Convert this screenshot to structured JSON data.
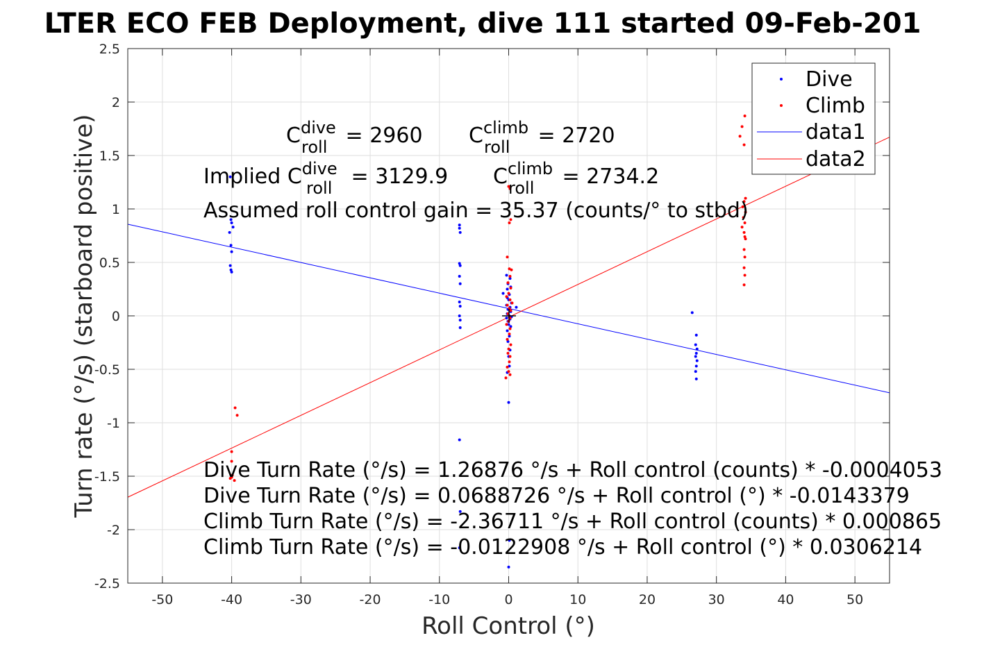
{
  "chart_data": {
    "type": "scatter",
    "title": "LTER ECO FEB Deployment, dive 111 started 09-Feb-201",
    "xlabel": "Roll Control (°)",
    "ylabel": "Turn rate (°/s) (starboard positive)",
    "xlim": [
      -55,
      55
    ],
    "ylim": [
      -2.5,
      2.5
    ],
    "xticks": [
      -50,
      -40,
      -30,
      -20,
      -10,
      0,
      10,
      20,
      30,
      40,
      50
    ],
    "yticks": [
      -2.5,
      -2,
      -1.5,
      -1,
      -0.5,
      0,
      0.5,
      1,
      1.5,
      2,
      2.5
    ],
    "grid": true,
    "legend_position": "top-right",
    "legend": [
      "Dive",
      "Climb",
      "data1",
      "data2"
    ],
    "colors": {
      "dive": "#0000ff",
      "climb": "#ff0000",
      "axis": "#262626",
      "grid": "#dedede"
    },
    "series": [
      {
        "name": "Dive",
        "kind": "points",
        "color": "#0000ff",
        "points": [
          [
            -40.2,
            1.3
          ],
          [
            -40.1,
            0.9
          ],
          [
            -40.0,
            0.87
          ],
          [
            -40.3,
            0.78
          ],
          [
            -39.8,
            0.83
          ],
          [
            -40.1,
            0.66
          ],
          [
            -40.0,
            0.6
          ],
          [
            -40.2,
            0.47
          ],
          [
            -40.1,
            0.43
          ],
          [
            -40.0,
            0.41
          ],
          [
            -7.1,
            0.85
          ],
          [
            -7.1,
            0.82
          ],
          [
            -7.0,
            0.78
          ],
          [
            -7.1,
            0.49
          ],
          [
            -7.0,
            0.47
          ],
          [
            -7.1,
            0.37
          ],
          [
            -7.0,
            0.3
          ],
          [
            -7.1,
            0.13
          ],
          [
            -7.0,
            0.09
          ],
          [
            -7.1,
            0.0
          ],
          [
            -7.0,
            -0.04
          ],
          [
            -7.0,
            -0.11
          ],
          [
            -7.1,
            -1.16
          ],
          [
            -7.0,
            -1.83
          ],
          [
            -7.1,
            -2.17
          ],
          [
            -0.3,
            0.38
          ],
          [
            0.2,
            0.35
          ],
          [
            -0.1,
            0.3
          ],
          [
            0.3,
            0.27
          ],
          [
            -0.2,
            0.25
          ],
          [
            -0.8,
            0.21
          ],
          [
            0.1,
            0.2
          ],
          [
            -0.2,
            0.17
          ],
          [
            0.0,
            0.15
          ],
          [
            0.4,
            0.12
          ],
          [
            -0.3,
            0.1
          ],
          [
            0.2,
            0.08
          ],
          [
            -0.1,
            0.06
          ],
          [
            1.1,
            0.08
          ],
          [
            0.3,
            0.04
          ],
          [
            -0.2,
            0.02
          ],
          [
            0.1,
            0.0
          ],
          [
            -0.3,
            -0.02
          ],
          [
            0.4,
            -0.01
          ],
          [
            0.2,
            -0.03
          ],
          [
            -0.1,
            -0.05
          ],
          [
            0.0,
            -0.08
          ],
          [
            0.3,
            -0.1
          ],
          [
            -0.2,
            -0.14
          ],
          [
            0.1,
            -0.19
          ],
          [
            -0.1,
            -0.24
          ],
          [
            0.2,
            -0.32
          ],
          [
            0.0,
            -0.38
          ],
          [
            0.1,
            -0.47
          ],
          [
            -0.2,
            -0.53
          ],
          [
            0.0,
            -0.81
          ],
          [
            0.1,
            -2.1
          ],
          [
            0.0,
            -2.35
          ],
          [
            26.5,
            0.03
          ],
          [
            27.1,
            -0.18
          ],
          [
            27.0,
            -0.27
          ],
          [
            27.2,
            -0.31
          ],
          [
            27.1,
            -0.35
          ],
          [
            27.0,
            -0.38
          ],
          [
            27.2,
            -0.42
          ],
          [
            27.1,
            -0.47
          ],
          [
            27.0,
            -0.52
          ],
          [
            27.1,
            -0.59
          ]
        ]
      },
      {
        "name": "Climb",
        "kind": "points",
        "color": "#ff0000",
        "points": [
          [
            -39.5,
            -0.86
          ],
          [
            -39.2,
            -0.93
          ],
          [
            -40.0,
            -1.27
          ],
          [
            -40.0,
            -1.36
          ],
          [
            -39.9,
            -1.49
          ],
          [
            -40.2,
            -1.52
          ],
          [
            -40.0,
            -1.51
          ],
          [
            -39.6,
            -1.54
          ],
          [
            0.2,
            1.19
          ],
          [
            0.0,
            1.21
          ],
          [
            0.3,
            0.9
          ],
          [
            0.1,
            0.87
          ],
          [
            -0.2,
            0.55
          ],
          [
            0.1,
            0.44
          ],
          [
            0.4,
            0.43
          ],
          [
            0.2,
            0.37
          ],
          [
            -0.1,
            0.31
          ],
          [
            0.3,
            0.26
          ],
          [
            0.0,
            0.21
          ],
          [
            -0.3,
            0.18
          ],
          [
            0.2,
            0.15
          ],
          [
            0.5,
            0.12
          ],
          [
            -0.2,
            0.1
          ],
          [
            0.1,
            0.07
          ],
          [
            0.3,
            0.05
          ],
          [
            -0.1,
            0.02
          ],
          [
            0.2,
            -0.02
          ],
          [
            0.0,
            -0.05
          ],
          [
            -0.3,
            -0.08
          ],
          [
            0.2,
            -0.12
          ],
          [
            0.1,
            -0.17
          ],
          [
            -0.2,
            -0.22
          ],
          [
            0.3,
            -0.27
          ],
          [
            0.0,
            -0.31
          ],
          [
            -0.1,
            -0.35
          ],
          [
            0.2,
            -0.38
          ],
          [
            0.1,
            -0.43
          ],
          [
            -0.2,
            -0.48
          ],
          [
            0.0,
            -0.52
          ],
          [
            0.2,
            -0.55
          ],
          [
            -0.4,
            -0.58
          ],
          [
            34.1,
            1.87
          ],
          [
            33.7,
            1.77
          ],
          [
            33.4,
            1.68
          ],
          [
            34.0,
            1.6
          ],
          [
            34.2,
            1.1
          ],
          [
            34.0,
            1.07
          ],
          [
            33.8,
            1.02
          ],
          [
            34.2,
            0.97
          ],
          [
            33.9,
            0.92
          ],
          [
            34.1,
            0.87
          ],
          [
            33.7,
            0.83
          ],
          [
            34.0,
            0.78
          ],
          [
            34.1,
            0.74
          ],
          [
            34.2,
            0.72
          ],
          [
            34.0,
            0.62
          ],
          [
            34.1,
            0.55
          ],
          [
            34.0,
            0.45
          ],
          [
            34.1,
            0.38
          ],
          [
            34.0,
            0.29
          ]
        ]
      },
      {
        "name": "data1",
        "kind": "line",
        "color": "#0000ff",
        "intercept": 0.0688726,
        "slope": -0.0143379
      },
      {
        "name": "data2",
        "kind": "line",
        "color": "#ff0000",
        "intercept": -0.0122908,
        "slope": 0.0306214
      }
    ],
    "annotations": {
      "c_dive_label": "C",
      "c_dive_sup": "dive",
      "c_dive_sub": "roll",
      "c_dive_value": " = 2960",
      "c_climb_label": "C",
      "c_climb_sup": "climb",
      "c_climb_sub": "roll",
      "c_climb_value": " = 2720",
      "implied_prefix": "Implied C",
      "implied_dive_sup": "dive",
      "implied_dive_sub": "roll",
      "implied_dive_value": " = 3129.9",
      "implied_climb_label": "C",
      "implied_climb_sup": "climb",
      "implied_climb_sub": "roll",
      "implied_climb_value": " = 2734.2",
      "gain": "Assumed roll control gain = 35.37 (counts/° to stbd)",
      "eq1": "Dive Turn Rate (°/s) = 1.26876 °/s + Roll control (counts) * -0.0004053",
      "eq2": "Dive Turn Rate (°/s) = 0.0688726 °/s + Roll control (°) * -0.0143379",
      "eq3": "Climb Turn Rate (°/s) = -2.36711 °/s + Roll control (counts) * 0.000865",
      "eq4": "Climb Turn Rate (°/s) = -0.0122908 °/s + Roll control (°) * 0.0306214"
    }
  }
}
